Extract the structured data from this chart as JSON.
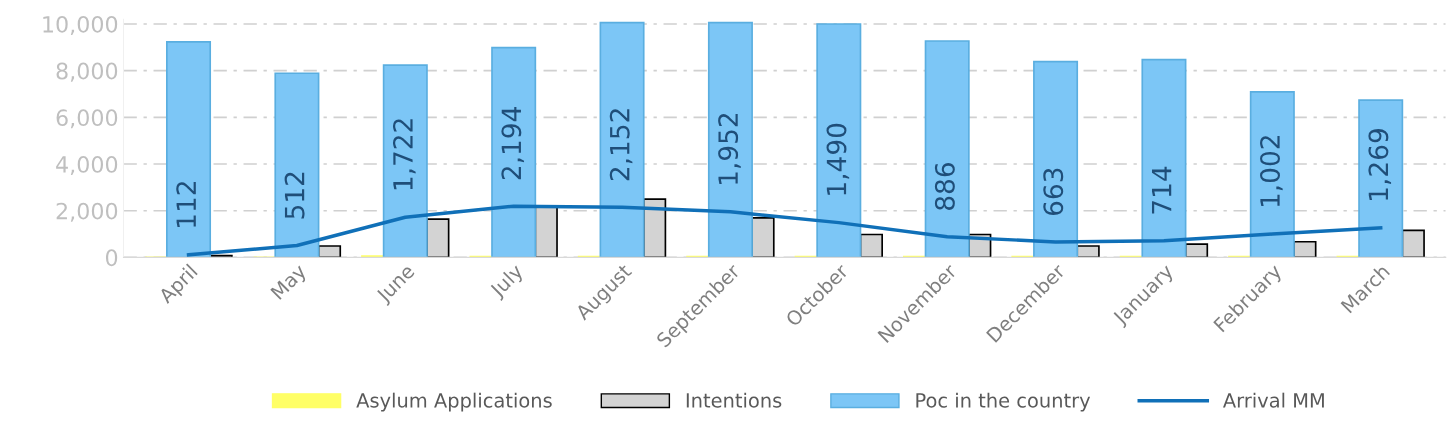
{
  "chart_data": {
    "type": "bar",
    "categories": [
      "April",
      "May",
      "June",
      "July",
      "August",
      "September",
      "October",
      "November",
      "December",
      "January",
      "February",
      "March"
    ],
    "series": [
      {
        "name": "Asylum Applications",
        "color": "#ffff66",
        "values": [
          0,
          0,
          60,
          30,
          30,
          30,
          30,
          30,
          30,
          30,
          30,
          30
        ]
      },
      {
        "name": "Intentions",
        "color": "#d3d3d3",
        "values": [
          80,
          490,
          1640,
          2150,
          2500,
          1690,
          980,
          980,
          490,
          570,
          670,
          1160
        ]
      },
      {
        "name": "Poc in the country",
        "color": "#7cc6f6",
        "values": [
          9230,
          7890,
          8240,
          8990,
          10060,
          10060,
          10000,
          9270,
          8390,
          8470,
          7090,
          6740
        ]
      },
      {
        "name": "Arrival MM",
        "type": "line",
        "color": "#1070b8",
        "values": [
          112,
          512,
          1722,
          2194,
          2152,
          1952,
          1490,
          886,
          663,
          714,
          1002,
          1269
        ],
        "value_labels": [
          "112",
          "512",
          "1,722",
          "2,194",
          "2,152",
          "1,952",
          "1,490",
          "886",
          "663",
          "714",
          "1,002",
          "1,269"
        ]
      }
    ],
    "ylim": [
      0,
      10200
    ],
    "yticks": [
      {
        "value": 0,
        "label": "0"
      },
      {
        "value": 2000,
        "label": "2,000"
      },
      {
        "value": 4000,
        "label": "4,000"
      },
      {
        "value": 6000,
        "label": "6,000"
      },
      {
        "value": 8000,
        "label": "8,000"
      },
      {
        "value": 10000,
        "label": "10,000"
      }
    ],
    "grid": "y",
    "legend": "bottom",
    "marker": "none",
    "line_style": "solid"
  }
}
